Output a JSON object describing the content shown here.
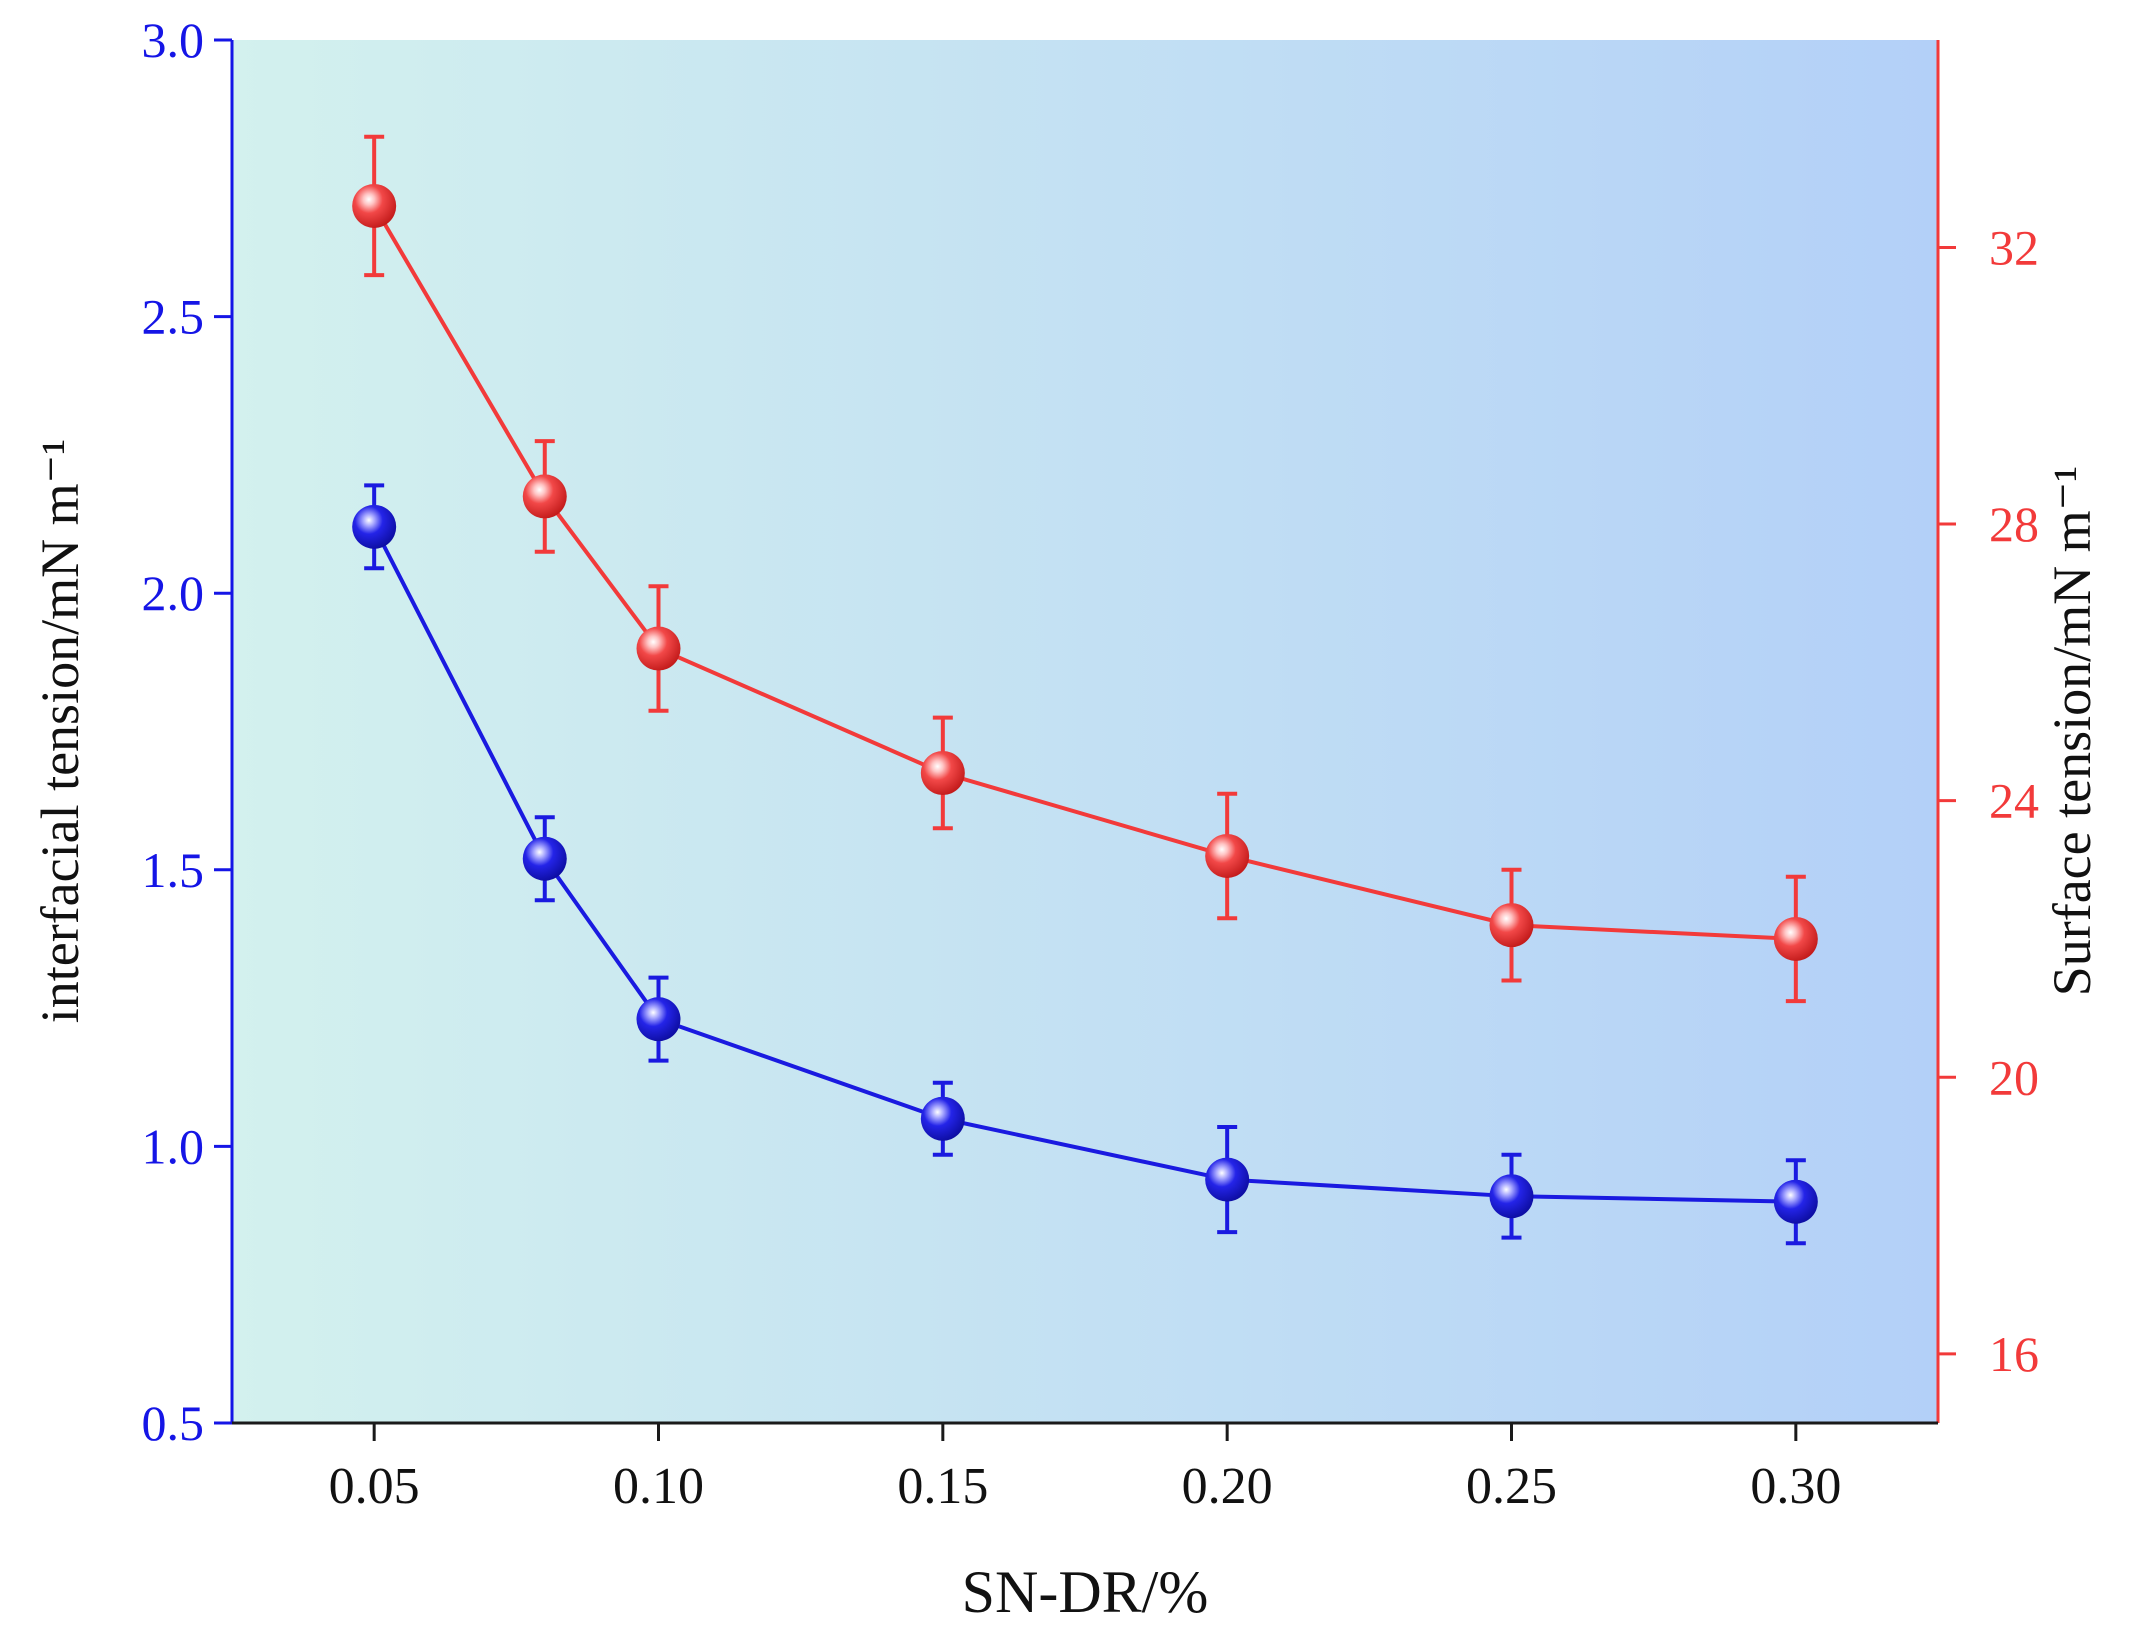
{
  "chart_data": {
    "type": "line",
    "x": [
      0.05,
      0.08,
      0.1,
      0.15,
      0.2,
      0.25,
      0.3
    ],
    "xlabel": "SN-DR/%",
    "xlim": [
      0.025,
      0.325
    ],
    "xticks": [
      "0.05",
      "0.10",
      "0.15",
      "0.20",
      "0.25",
      "0.30"
    ],
    "xtick_values": [
      0.05,
      0.1,
      0.15,
      0.2,
      0.25,
      0.3
    ],
    "left_axis": {
      "label": "interfacial tension/mN m⁻¹",
      "ylim": [
        0.5,
        3.0
      ],
      "ticks": [
        "0.5",
        "1.0",
        "1.5",
        "2.0",
        "2.5",
        "3.0"
      ],
      "tick_values": [
        0.5,
        1.0,
        1.5,
        2.0,
        2.5,
        3.0
      ],
      "color": "#1515e6"
    },
    "right_axis": {
      "label": "Surface tension/mN m⁻¹",
      "ylim": [
        15,
        35
      ],
      "ticks": [
        "16",
        "20",
        "24",
        "28",
        "32"
      ],
      "tick_values": [
        16,
        20,
        24,
        28,
        32
      ],
      "color": "#f23a3a"
    },
    "series": [
      {
        "name": "interfacial tension",
        "axis": "left",
        "color": "#1a1ae0",
        "values": [
          2.12,
          1.52,
          1.23,
          1.05,
          0.94,
          0.91,
          0.9
        ],
        "errors": [
          0.075,
          0.075,
          0.075,
          0.065,
          0.095,
          0.075,
          0.075
        ]
      },
      {
        "name": "surface tension",
        "axis": "right",
        "color": "#f23a3a",
        "values": [
          32.6,
          28.4,
          26.2,
          24.4,
          23.2,
          22.2,
          22.0
        ],
        "errors": [
          1.0,
          0.8,
          0.9,
          0.8,
          0.9,
          0.8,
          0.9
        ]
      }
    ],
    "background": {
      "gradient_from": "#d3f1ee",
      "gradient_to": "#b3d0f8"
    }
  }
}
